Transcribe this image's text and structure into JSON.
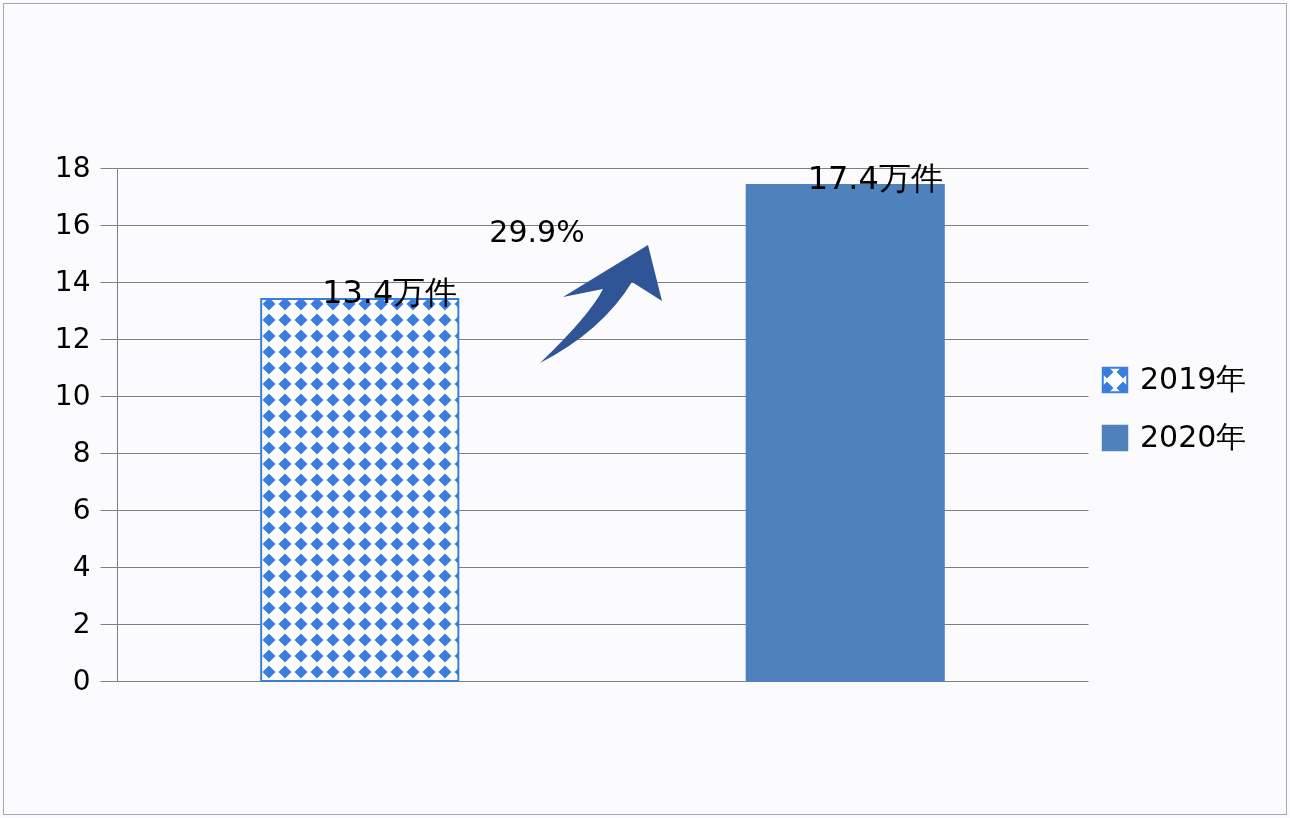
{
  "chart_data": {
    "type": "bar",
    "categories": [
      null,
      null
    ],
    "series": [
      {
        "name": "2019年",
        "color": "#3b7ddd",
        "values": [
          13.4,
          null
        ],
        "value_labels": [
          "13.4万件",
          null
        ]
      },
      {
        "name": "2020年",
        "color": "#4f81bd",
        "values": [
          null,
          17.4
        ],
        "value_labels": [
          null,
          "17.4万件"
        ]
      }
    ],
    "ylim": [
      0,
      18
    ],
    "yticks": [
      0,
      2,
      4,
      6,
      8,
      10,
      12,
      14,
      16,
      18
    ],
    "grid": "y",
    "legend": "right",
    "annotations": [
      "29.9%"
    ]
  }
}
